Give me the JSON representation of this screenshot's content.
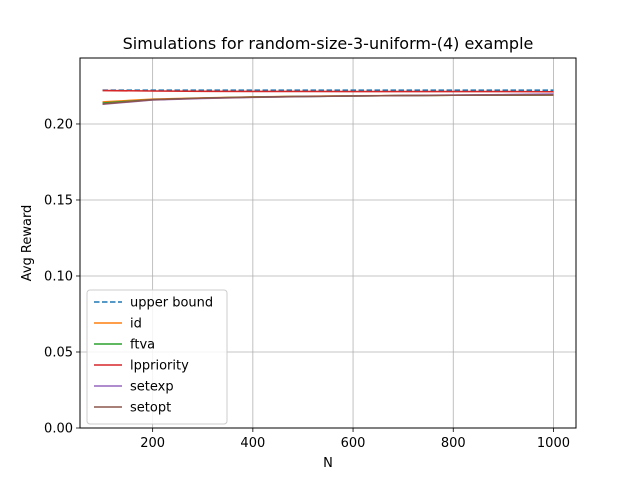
{
  "chart_data": {
    "type": "line",
    "title": "Simulations for random-size-3-uniform-(4) example",
    "xlabel": "N",
    "ylabel": "Avg Reward",
    "xlim": [
      55,
      1045
    ],
    "ylim": [
      0.0,
      0.2434
    ],
    "xticks": [
      200,
      400,
      600,
      800,
      1000
    ],
    "yticks": [
      0.0,
      0.05,
      0.1,
      0.15,
      0.2
    ],
    "ytick_labels": [
      "0.00",
      "0.05",
      "0.10",
      "0.15",
      "0.20"
    ],
    "grid": true,
    "legend_position": "lower-left",
    "x": [
      100,
      200,
      300,
      400,
      500,
      600,
      700,
      800,
      900,
      1000
    ],
    "series": [
      {
        "name": "upper bound",
        "color": "#1f77b4",
        "dash": true,
        "values": [
          0.2222,
          0.2222,
          0.2222,
          0.2222,
          0.2222,
          0.2222,
          0.2222,
          0.2222,
          0.2222,
          0.2222
        ]
      },
      {
        "name": "id",
        "color": "#ff7f0e",
        "dash": false,
        "values": [
          0.2145,
          0.2163,
          0.2171,
          0.2178,
          0.2182,
          0.2185,
          0.2187,
          0.2189,
          0.219,
          0.2191
        ]
      },
      {
        "name": "ftva",
        "color": "#2ca02c",
        "dash": false,
        "values": [
          0.2138,
          0.216,
          0.217,
          0.2177,
          0.2181,
          0.2184,
          0.2187,
          0.2189,
          0.219,
          0.2191
        ]
      },
      {
        "name": "lppriority",
        "color": "#d62728",
        "dash": false,
        "values": [
          0.222,
          0.2217,
          0.2215,
          0.2214,
          0.2214,
          0.2213,
          0.2213,
          0.2213,
          0.2213,
          0.2212
        ]
      },
      {
        "name": "setexp",
        "color": "#9467bd",
        "dash": false,
        "values": [
          0.213,
          0.2158,
          0.2168,
          0.2175,
          0.218,
          0.2184,
          0.2187,
          0.219,
          0.2193,
          0.2197
        ]
      },
      {
        "name": "setopt",
        "color": "#8c564b",
        "dash": false,
        "values": [
          0.2132,
          0.216,
          0.217,
          0.2176,
          0.2181,
          0.2184,
          0.2187,
          0.2189,
          0.219,
          0.2191
        ]
      }
    ]
  }
}
